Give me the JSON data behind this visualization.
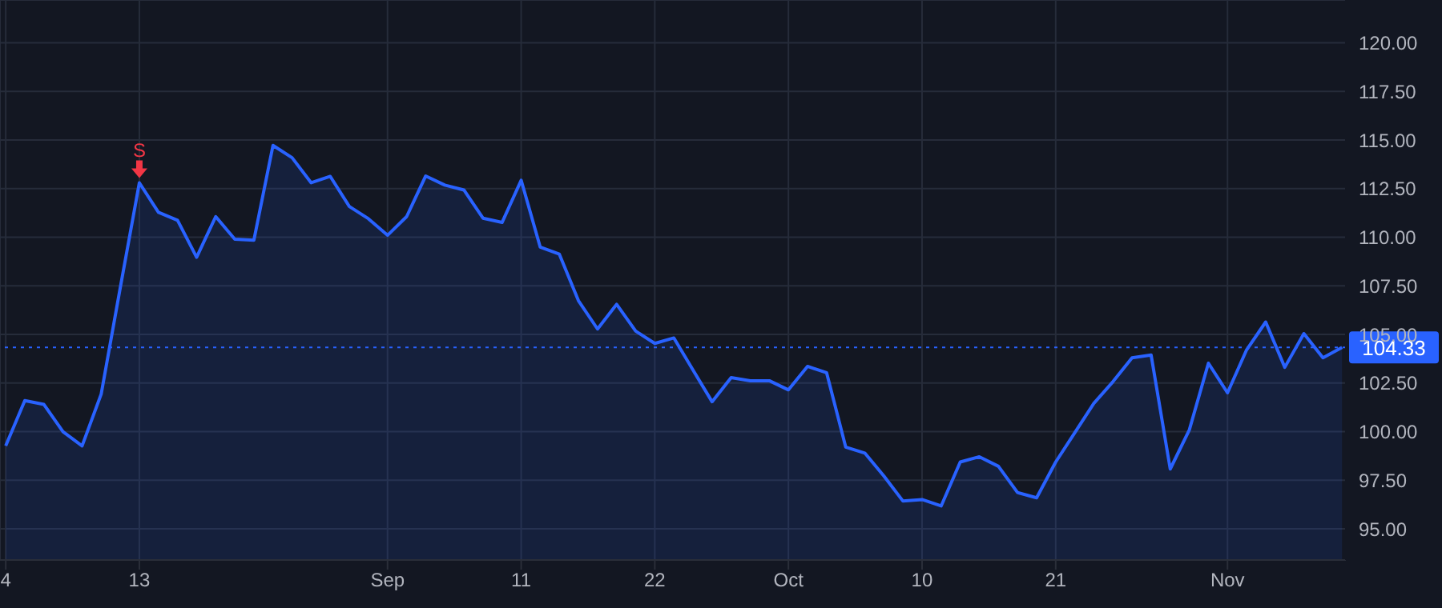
{
  "chart_data": {
    "type": "area",
    "categories": [
      "4",
      null,
      null,
      null,
      null,
      null,
      null,
      "13",
      null,
      null,
      null,
      null,
      null,
      null,
      null,
      null,
      null,
      null,
      null,
      null,
      "Sep",
      null,
      null,
      null,
      null,
      null,
      null,
      "11",
      null,
      null,
      null,
      null,
      null,
      null,
      "22",
      null,
      null,
      null,
      null,
      null,
      null,
      "Oct",
      null,
      null,
      null,
      null,
      null,
      null,
      "10",
      null,
      null,
      null,
      null,
      null,
      null,
      "21",
      null,
      null,
      null,
      null,
      null,
      null,
      null,
      null,
      "Nov",
      null,
      null,
      null,
      null,
      null,
      null
    ],
    "series": [
      {
        "color": "#2962ff",
        "values": [
          99.27,
          101.6,
          101.4,
          100.0,
          99.27,
          101.93,
          107.4,
          112.8,
          111.28,
          110.87,
          108.97,
          111.06,
          109.9,
          109.85,
          114.72,
          114.09,
          112.8,
          113.13,
          111.58,
          110.95,
          110.1,
          111.06,
          113.15,
          112.68,
          112.43,
          110.98,
          110.76,
          112.93,
          109.49,
          109.13,
          106.74,
          105.28,
          106.55,
          105.17,
          104.54,
          104.82,
          103.17,
          101.54,
          102.78,
          102.62,
          102.62,
          102.15,
          103.36,
          103.03,
          99.21,
          98.9,
          97.72,
          96.43,
          96.51,
          96.18,
          98.44,
          98.71,
          98.22,
          96.87,
          96.6,
          98.44,
          99.95,
          101.46,
          102.57,
          103.8,
          103.94,
          98.08,
          100.09,
          103.52,
          102.0,
          104.21,
          105.64,
          103.31,
          105.04,
          103.8,
          104.33
        ]
      }
    ],
    "ylim": [
      93.4,
      122.2
    ],
    "yticks": [
      {
        "value": 95,
        "label": "95.00"
      },
      {
        "value": 97.5,
        "label": "97.50"
      },
      {
        "value": 100,
        "label": "100.00"
      },
      {
        "value": 102.5,
        "label": "102.50"
      },
      {
        "value": 105,
        "label": "105.00"
      },
      {
        "value": 107.5,
        "label": "107.50"
      },
      {
        "value": 110,
        "label": "110.00"
      },
      {
        "value": 112.5,
        "label": "112.50"
      },
      {
        "value": 115,
        "label": "115.00"
      },
      {
        "value": 117.5,
        "label": "117.50"
      },
      {
        "value": 120,
        "label": "120.00"
      }
    ],
    "grid": true,
    "ref_lines": [
      {
        "axis": "y",
        "value": 104.33,
        "label": "104.33",
        "color": "#2962ff",
        "line_style": "dotted"
      }
    ],
    "annotations": [
      {
        "text": "S",
        "x": "13",
        "y": 112.8
      }
    ]
  }
}
